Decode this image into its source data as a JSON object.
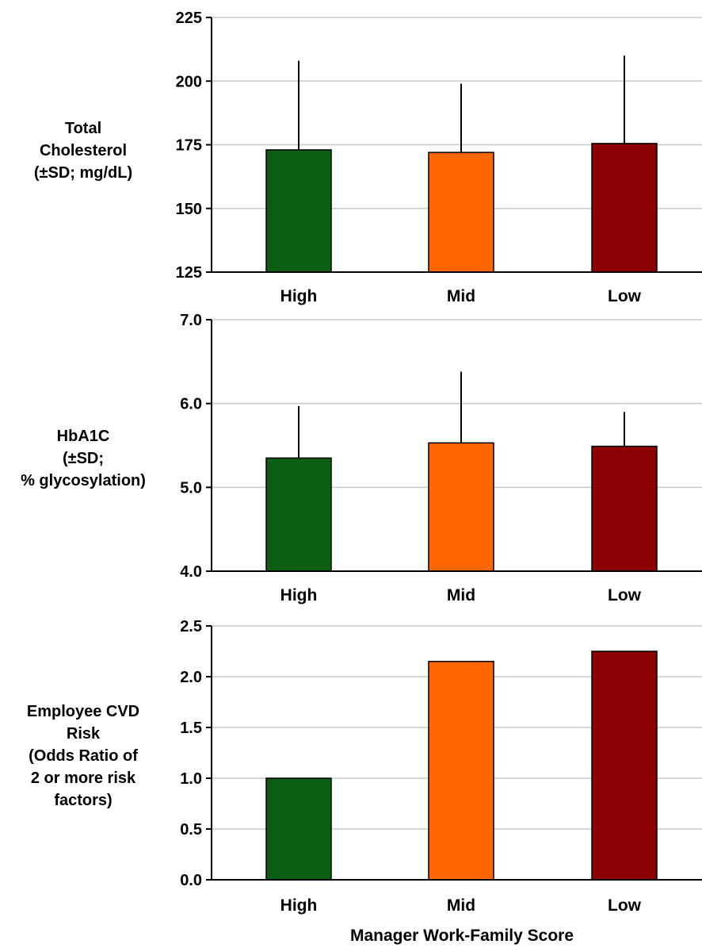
{
  "chart_data": [
    {
      "type": "bar",
      "ylabel_lines": [
        "Total",
        "Cholesterol",
        "(±SD; mg/dL)"
      ],
      "categories": [
        "High",
        "Mid",
        "Low"
      ],
      "values": [
        173,
        172,
        175.5
      ],
      "error_upper": [
        208,
        199,
        210
      ],
      "ylim": [
        125,
        225
      ],
      "yticks": [
        125,
        150,
        175,
        200,
        225
      ],
      "ytick_labels": [
        "125",
        "150",
        "175",
        "200",
        "225"
      ],
      "grid": true,
      "colors": [
        "#0b5e12",
        "#ff6600",
        "#8b0000"
      ]
    },
    {
      "type": "bar",
      "ylabel_lines": [
        "HbA1C",
        "(±SD;",
        "% glycosylation)"
      ],
      "categories": [
        "High",
        "Mid",
        "Low"
      ],
      "values": [
        5.35,
        5.53,
        5.49
      ],
      "error_upper": [
        5.97,
        6.38,
        5.9
      ],
      "ylim": [
        4.0,
        7.0
      ],
      "yticks": [
        4.0,
        5.0,
        6.0,
        7.0
      ],
      "ytick_labels": [
        "4.0",
        "5.0",
        "6.0",
        "7.0"
      ],
      "grid": true,
      "colors": [
        "#0b5e12",
        "#ff6600",
        "#8b0000"
      ]
    },
    {
      "type": "bar",
      "ylabel_lines": [
        "Employee CVD",
        "Risk",
        "(Odds Ratio of",
        "2 or more risk",
        "factors)"
      ],
      "categories": [
        "High",
        "Mid",
        "Low"
      ],
      "values": [
        1.0,
        2.15,
        2.25
      ],
      "ylim": [
        0.0,
        2.5
      ],
      "yticks": [
        0.0,
        0.5,
        1.0,
        1.5,
        2.0,
        2.5
      ],
      "ytick_labels": [
        "0.0",
        "0.5",
        "1.0",
        "1.5",
        "2.0",
        "2.5"
      ],
      "grid": true,
      "colors": [
        "#0b5e12",
        "#ff6600",
        "#8b0000"
      ]
    }
  ],
  "xlabel": "Manager Work-Family Score"
}
